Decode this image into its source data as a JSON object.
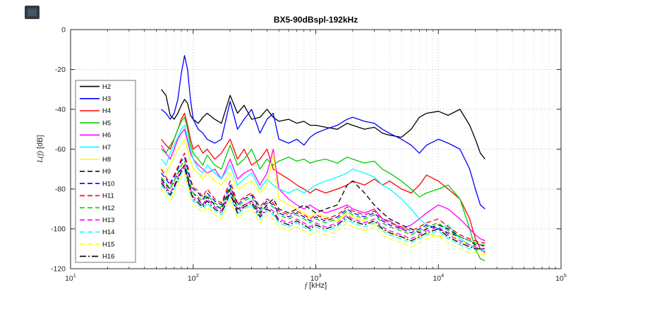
{
  "page": {
    "background": "#ffffff",
    "corner_icon_color": "#2f3b45"
  },
  "chart_data": {
    "type": "line",
    "title": "BX5-90dBspl-192kHz",
    "xlabel": "f [kHz]",
    "xlabel_main": "f",
    "xlabel_unit": " [kHz]",
    "ylabel": "L(f) [dB]",
    "ylabel_main": "L(f)",
    "ylabel_unit": " [dB]",
    "x_scale": "log",
    "xlim": [
      10,
      100000
    ],
    "ylim": [
      -120,
      0
    ],
    "x_ticks": [
      10,
      100,
      1000,
      10000,
      100000
    ],
    "y_ticks": [
      0,
      -20,
      -40,
      -60,
      -80,
      -100,
      -120
    ],
    "grid": true,
    "minor_grid": true,
    "legend_position": "upper-left-inside",
    "x": [
      55,
      60,
      65,
      70,
      75,
      80,
      85,
      90,
      95,
      100,
      110,
      120,
      130,
      150,
      170,
      200,
      230,
      260,
      300,
      350,
      400,
      450,
      500,
      600,
      700,
      800,
      900,
      1000,
      1200,
      1500,
      1800,
      2000,
      2500,
      3000,
      3500,
      4000,
      5000,
      6000,
      7000,
      8000,
      10000,
      12000,
      15000,
      18000,
      20000,
      22000,
      24000
    ],
    "series": [
      {
        "name": "H2",
        "color": "#000000",
        "style": "solid",
        "values": [
          -30,
          -33,
          -43,
          -45,
          -42,
          -38,
          -35,
          -37,
          -43,
          -45,
          -47,
          -44,
          -42,
          -45,
          -47,
          -33,
          -42,
          -38,
          -45,
          -44,
          -40,
          -44,
          -46,
          -45,
          -47,
          -46,
          -48,
          -48,
          -49,
          -50,
          -47,
          -48,
          -50,
          -49,
          -52,
          -53,
          -54,
          -50,
          -44,
          -42,
          -41,
          -43,
          -40,
          -48,
          -55,
          -62,
          -65
        ]
      },
      {
        "name": "H3",
        "color": "#0000ff",
        "style": "solid",
        "values": [
          -40,
          -42,
          -45,
          -42,
          -35,
          -22,
          -13,
          -20,
          -35,
          -45,
          -50,
          -52,
          -55,
          -57,
          -55,
          -36,
          -50,
          -45,
          -40,
          -52,
          -45,
          -42,
          -55,
          -57,
          -55,
          -58,
          -54,
          -52,
          -50,
          -48,
          -45,
          -44,
          -46,
          -47,
          -50,
          -52,
          -55,
          -58,
          -62,
          -58,
          -55,
          -57,
          -60,
          -70,
          -80,
          -88,
          -90
        ]
      },
      {
        "name": "H4",
        "color": "#ff0000",
        "style": "solid",
        "values": [
          -55,
          -58,
          -60,
          -55,
          -50,
          -45,
          -42,
          -48,
          -55,
          -60,
          -58,
          -62,
          -60,
          -65,
          -62,
          -55,
          -65,
          -60,
          -68,
          -65,
          -60,
          -70,
          -72,
          -75,
          -78,
          -80,
          -82,
          -80,
          -82,
          -80,
          -78,
          -76,
          -78,
          -75,
          -78,
          -76,
          -80,
          -82,
          -78,
          -73,
          -76,
          -80,
          -85,
          -95,
          -105,
          -110,
          -112
        ]
      },
      {
        "name": "H5",
        "color": "#00cc00",
        "style": "solid",
        "values": [
          -60,
          -62,
          -58,
          -55,
          -50,
          -46,
          -44,
          -50,
          -58,
          -62,
          -65,
          -68,
          -63,
          -68,
          -70,
          -58,
          -68,
          -65,
          -60,
          -70,
          -65,
          -68,
          -66,
          -64,
          -66,
          -65,
          -67,
          -66,
          -65,
          -67,
          -64,
          -65,
          -67,
          -66,
          -70,
          -72,
          -76,
          -80,
          -84,
          -82,
          -80,
          -78,
          -85,
          -100,
          -110,
          -115,
          -116
        ]
      },
      {
        "name": "H6",
        "color": "#ff00ff",
        "style": "solid",
        "values": [
          -58,
          -62,
          -65,
          -60,
          -55,
          -52,
          -50,
          -56,
          -62,
          -65,
          -68,
          -70,
          -72,
          -70,
          -75,
          -65,
          -75,
          -72,
          -70,
          -78,
          -72,
          -60,
          -80,
          -85,
          -88,
          -90,
          -88,
          -90,
          -92,
          -90,
          -88,
          -90,
          -92,
          -90,
          -95,
          -96,
          -100,
          -98,
          -95,
          -92,
          -88,
          -90,
          -95,
          -100,
          -103,
          -105,
          -106
        ]
      },
      {
        "name": "H7",
        "color": "#00ffff",
        "style": "solid",
        "values": [
          -65,
          -68,
          -62,
          -58,
          -54,
          -50,
          -48,
          -54,
          -60,
          -65,
          -70,
          -72,
          -68,
          -72,
          -75,
          -68,
          -78,
          -75,
          -72,
          -80,
          -75,
          -78,
          -80,
          -82,
          -80,
          -82,
          -80,
          -78,
          -76,
          -74,
          -72,
          -70,
          -72,
          -74,
          -78,
          -80,
          -85,
          -90,
          -95,
          -98,
          -100,
          -98,
          -105,
          -108,
          -110,
          -110,
          -110
        ]
      },
      {
        "name": "H8",
        "color": "#ffff00",
        "style": "solid",
        "values": [
          -70,
          -72,
          -68,
          -64,
          -60,
          -58,
          -55,
          -60,
          -66,
          -70,
          -72,
          -75,
          -72,
          -76,
          -78,
          -72,
          -80,
          -78,
          -76,
          -82,
          -78,
          -62,
          -85,
          -88,
          -90,
          -92,
          -94,
          -92,
          -94,
          -96,
          -92,
          -94,
          -96,
          -98,
          -100,
          -102,
          -104,
          -106,
          -104,
          -102,
          -104,
          -102,
          -106,
          -108,
          -109,
          -110,
          -110
        ]
      },
      {
        "name": "H9",
        "color": "#000000",
        "style": "dashed",
        "values": [
          -75,
          -78,
          -80,
          -76,
          -72,
          -70,
          -68,
          -74,
          -80,
          -82,
          -85,
          -88,
          -84,
          -88,
          -90,
          -80,
          -90,
          -88,
          -86,
          -92,
          -88,
          -85,
          -90,
          -92,
          -90,
          -88,
          -90,
          -92,
          -90,
          -88,
          -78,
          -76,
          -82,
          -88,
          -92,
          -95,
          -98,
          -100,
          -102,
          -100,
          -98,
          -100,
          -104,
          -106,
          -108,
          -108,
          -109
        ]
      },
      {
        "name": "H10",
        "color": "#0000ff",
        "style": "dashed",
        "values": [
          -72,
          -75,
          -78,
          -74,
          -70,
          -66,
          -64,
          -70,
          -76,
          -80,
          -82,
          -85,
          -82,
          -86,
          -88,
          -78,
          -88,
          -85,
          -83,
          -90,
          -86,
          -88,
          -92,
          -94,
          -92,
          -94,
          -96,
          -94,
          -96,
          -94,
          -90,
          -92,
          -94,
          -92,
          -96,
          -98,
          -100,
          -102,
          -100,
          -98,
          -100,
          -102,
          -104,
          -106,
          -107,
          -108,
          -108
        ]
      },
      {
        "name": "H11",
        "color": "#ff0000",
        "style": "dashed",
        "values": [
          -70,
          -74,
          -77,
          -73,
          -69,
          -65,
          -62,
          -68,
          -75,
          -79,
          -81,
          -84,
          -80,
          -85,
          -87,
          -76,
          -87,
          -84,
          -82,
          -89,
          -85,
          -87,
          -91,
          -93,
          -91,
          -93,
          -95,
          -93,
          -95,
          -93,
          -89,
          -91,
          -93,
          -91,
          -95,
          -97,
          -99,
          -101,
          -99,
          -97,
          -95,
          -99,
          -103,
          -105,
          -106,
          -107,
          -107
        ]
      },
      {
        "name": "H12",
        "color": "#00cc00",
        "style": "dashed",
        "values": [
          -74,
          -77,
          -80,
          -76,
          -72,
          -68,
          -66,
          -72,
          -78,
          -82,
          -84,
          -86,
          -83,
          -87,
          -89,
          -79,
          -89,
          -86,
          -84,
          -91,
          -87,
          -89,
          -93,
          -95,
          -93,
          -95,
          -97,
          -95,
          -97,
          -95,
          -91,
          -93,
          -95,
          -93,
          -97,
          -99,
          -101,
          -103,
          -101,
          -99,
          -97,
          -101,
          -104,
          -106,
          -107,
          -108,
          -108
        ]
      },
      {
        "name": "H13",
        "color": "#ff00ff",
        "style": "dashed",
        "values": [
          -76,
          -79,
          -82,
          -78,
          -74,
          -70,
          -68,
          -74,
          -80,
          -84,
          -86,
          -88,
          -85,
          -89,
          -91,
          -81,
          -91,
          -88,
          -86,
          -93,
          -89,
          -91,
          -95,
          -97,
          -95,
          -97,
          -99,
          -97,
          -99,
          -97,
          -93,
          -95,
          -97,
          -95,
          -99,
          -101,
          -103,
          -105,
          -103,
          -101,
          -99,
          -103,
          -106,
          -108,
          -109,
          -110,
          -110
        ]
      },
      {
        "name": "H14",
        "color": "#00ffff",
        "style": "dashed",
        "values": [
          -78,
          -81,
          -84,
          -80,
          -76,
          -72,
          -70,
          -76,
          -82,
          -86,
          -88,
          -90,
          -87,
          -91,
          -93,
          -83,
          -93,
          -90,
          -88,
          -95,
          -91,
          -93,
          -97,
          -99,
          -97,
          -99,
          -101,
          -99,
          -101,
          -99,
          -95,
          -97,
          -99,
          -97,
          -101,
          -103,
          -105,
          -107,
          -105,
          -103,
          -101,
          -105,
          -108,
          -110,
          -110,
          -111,
          -111
        ]
      },
      {
        "name": "H15",
        "color": "#ffff00",
        "style": "dashed",
        "values": [
          -80,
          -83,
          -86,
          -82,
          -78,
          -74,
          -72,
          -78,
          -84,
          -88,
          -90,
          -92,
          -89,
          -93,
          -95,
          -85,
          -95,
          -92,
          -90,
          -97,
          -93,
          -95,
          -99,
          -101,
          -99,
          -101,
          -103,
          -101,
          -103,
          -101,
          -97,
          -99,
          -101,
          -99,
          -103,
          -105,
          -107,
          -109,
          -107,
          -105,
          -103,
          -107,
          -110,
          -112,
          -112,
          -113,
          -113
        ]
      },
      {
        "name": "H16",
        "color": "#000000",
        "style": "dashdot",
        "values": [
          -77,
          -80,
          -83,
          -79,
          -75,
          -71,
          -69,
          -75,
          -81,
          -85,
          -87,
          -89,
          -86,
          -90,
          -92,
          -82,
          -92,
          -89,
          -87,
          -94,
          -90,
          -92,
          -96,
          -98,
          -96,
          -98,
          -100,
          -98,
          -100,
          -98,
          -94,
          -96,
          -98,
          -96,
          -100,
          -102,
          -104,
          -106,
          -104,
          -102,
          -100,
          -104,
          -107,
          -109,
          -110,
          -110,
          -110
        ]
      }
    ]
  }
}
